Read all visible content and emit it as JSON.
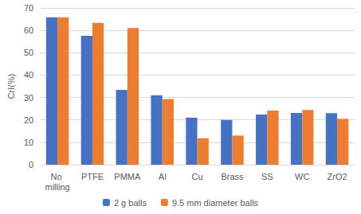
{
  "chart_data": {
    "type": "bar",
    "y_label": "CrI(%)",
    "categories": [
      "No milling",
      "PTFE",
      "PMMA",
      "Al",
      "Cu",
      "Brass",
      "SS",
      "WC",
      "ZrO2"
    ],
    "series": [
      {
        "name": "2 g balls",
        "color": "#4472c4",
        "values": [
          65.8,
          57.6,
          33.4,
          31.0,
          21.0,
          20.0,
          22.4,
          23.1,
          23.0
        ]
      },
      {
        "name": "9.5 mm diameter balls",
        "color": "#ed7d31",
        "values": [
          65.8,
          63.3,
          61.0,
          29.3,
          11.8,
          13.0,
          24.2,
          24.4,
          20.5
        ]
      }
    ],
    "ylim": [
      0,
      70
    ],
    "yticks": [
      0,
      10,
      20,
      30,
      40,
      50,
      60,
      70
    ],
    "grid": true,
    "legend": "bottom"
  }
}
